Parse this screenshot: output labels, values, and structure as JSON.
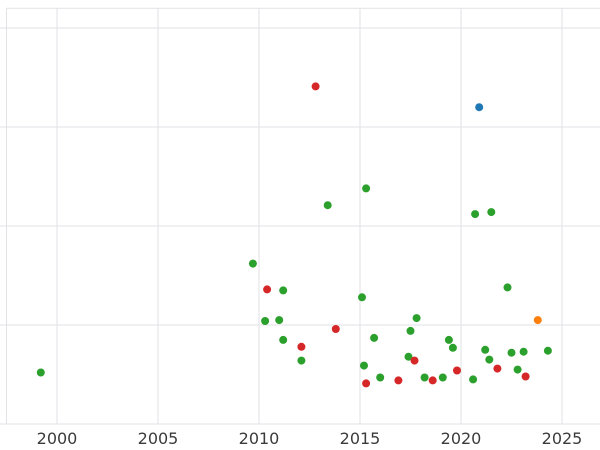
{
  "chart_data": {
    "type": "scatter",
    "title": "",
    "xlabel": "",
    "ylabel": "",
    "grid": true,
    "grid_color": "#e2e2e6",
    "background_color": "#ffffff",
    "x_ticks": [
      2000,
      2005,
      2010,
      2015,
      2020,
      2025
    ],
    "xlim": [
      1997.5,
      2026.9
    ],
    "ylim": [
      0,
      4.2
    ],
    "y_gridline_values": [
      1,
      2,
      3,
      4
    ],
    "legend": "none",
    "marker_radius": 4,
    "series": [
      {
        "name": "green-series",
        "color": "#2ca02c",
        "points": [
          [
            1999.2,
            0.52
          ],
          [
            2009.7,
            1.62
          ],
          [
            2010.3,
            1.04
          ],
          [
            2011.0,
            1.05
          ],
          [
            2011.2,
            1.35
          ],
          [
            2011.2,
            0.85
          ],
          [
            2012.1,
            0.64
          ],
          [
            2013.4,
            2.21
          ],
          [
            2015.1,
            1.28
          ],
          [
            2015.2,
            0.59
          ],
          [
            2015.3,
            2.38
          ],
          [
            2015.7,
            0.87
          ],
          [
            2016.0,
            0.47
          ],
          [
            2017.4,
            0.68
          ],
          [
            2017.5,
            0.94
          ],
          [
            2017.8,
            1.07
          ],
          [
            2018.2,
            0.47
          ],
          [
            2019.1,
            0.47
          ],
          [
            2019.4,
            0.85
          ],
          [
            2019.6,
            0.77
          ],
          [
            2020.6,
            0.45
          ],
          [
            2020.7,
            2.12
          ],
          [
            2021.2,
            0.75
          ],
          [
            2021.4,
            0.65
          ],
          [
            2021.5,
            2.14
          ],
          [
            2022.3,
            1.38
          ],
          [
            2022.5,
            0.72
          ],
          [
            2022.8,
            0.55
          ],
          [
            2023.1,
            0.73
          ],
          [
            2024.3,
            0.74
          ]
        ]
      },
      {
        "name": "red-series",
        "color": "#d62728",
        "points": [
          [
            2010.4,
            1.36
          ],
          [
            2012.1,
            0.78
          ],
          [
            2012.8,
            3.41
          ],
          [
            2013.8,
            0.96
          ],
          [
            2015.3,
            0.41
          ],
          [
            2016.9,
            0.44
          ],
          [
            2017.7,
            0.64
          ],
          [
            2018.6,
            0.44
          ],
          [
            2019.8,
            0.54
          ],
          [
            2021.8,
            0.56
          ],
          [
            2023.2,
            0.48
          ]
        ]
      },
      {
        "name": "blue-series",
        "color": "#1f77b4",
        "points": [
          [
            2020.9,
            3.2
          ]
        ]
      },
      {
        "name": "orange-series",
        "color": "#ff7f0e",
        "points": [
          [
            2023.8,
            1.05
          ]
        ]
      }
    ]
  }
}
